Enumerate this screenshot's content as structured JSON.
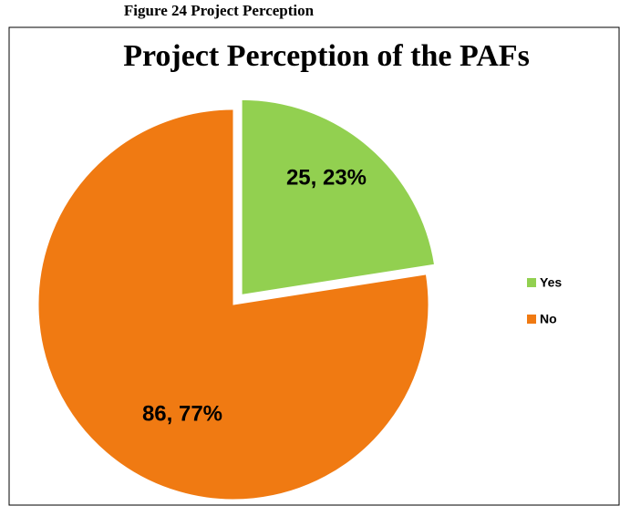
{
  "chart_data": {
    "type": "pie",
    "caption": "Figure 24 Project Perception",
    "title": "Project Perception of the PAFs",
    "categories": [
      "Yes",
      "No"
    ],
    "values": [
      25,
      86
    ],
    "value_labels": [
      "25, 23%",
      "86, 77%"
    ],
    "colors": [
      "#92d050",
      "#f07a12"
    ],
    "explode": [
      true,
      false
    ],
    "legend": "right"
  }
}
